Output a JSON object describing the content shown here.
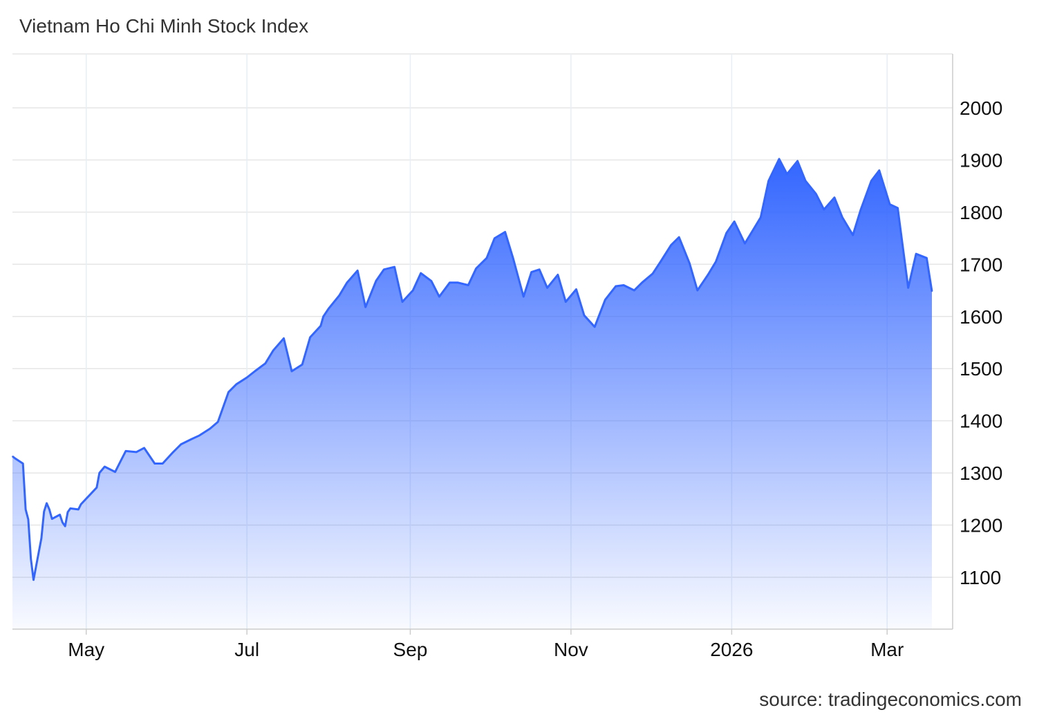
{
  "chart_data": {
    "type": "area",
    "title": "Vietnam Ho Chi Minh Stock Index",
    "source": "source: tradingeconomics.com",
    "xlabel": "",
    "ylabel": "",
    "x_ticks": [
      "May",
      "Jul",
      "Sep",
      "Nov",
      "2026",
      "Mar"
    ],
    "y_ticks": [
      1100,
      1200,
      1300,
      1400,
      1500,
      1600,
      1700,
      1800,
      1900,
      2000
    ],
    "ylim": [
      1000,
      2100
    ],
    "grid": true,
    "y_axis_side": "right",
    "series": [
      {
        "color": "#3366ff",
        "x": [
          "2025-04-03",
          "2025-04-04",
          "2025-04-07",
          "2025-04-08",
          "2025-04-09",
          "2025-04-10",
          "2025-04-11",
          "2025-04-14",
          "2025-04-15",
          "2025-04-16",
          "2025-04-17",
          "2025-04-18",
          "2025-04-21",
          "2025-04-22",
          "2025-04-23",
          "2025-04-24",
          "2025-04-25",
          "2025-04-28",
          "2025-04-29",
          "2025-05-05",
          "2025-05-06",
          "2025-05-08",
          "2025-05-12",
          "2025-05-14",
          "2025-05-16",
          "2025-05-20",
          "2025-05-23",
          "2025-05-27",
          "2025-05-30",
          "2025-06-03",
          "2025-06-06",
          "2025-06-10",
          "2025-06-13",
          "2025-06-17",
          "2025-06-20",
          "2025-06-24",
          "2025-06-27",
          "2025-07-01",
          "2025-07-04",
          "2025-07-08",
          "2025-07-11",
          "2025-07-15",
          "2025-07-18",
          "2025-07-22",
          "2025-07-25",
          "2025-07-29",
          "2025-07-30",
          "2025-08-01",
          "2025-08-05",
          "2025-08-08",
          "2025-08-12",
          "2025-08-15",
          "2025-08-19",
          "2025-08-22",
          "2025-08-26",
          "2025-08-29",
          "2025-09-02",
          "2025-09-05",
          "2025-09-09",
          "2025-09-12",
          "2025-09-16",
          "2025-09-19",
          "2025-09-23",
          "2025-09-26",
          "2025-09-30",
          "2025-10-03",
          "2025-10-07",
          "2025-10-10",
          "2025-10-14",
          "2025-10-17",
          "2025-10-20",
          "2025-10-23",
          "2025-10-27",
          "2025-10-30",
          "2025-11-03",
          "2025-11-06",
          "2025-11-10",
          "2025-11-14",
          "2025-11-18",
          "2025-11-21",
          "2025-11-25",
          "2025-11-28",
          "2025-12-02",
          "2025-12-05",
          "2025-12-09",
          "2025-12-12",
          "2025-12-16",
          "2025-12-19",
          "2025-12-23",
          "2025-12-26",
          "2025-12-30",
          "2026-01-02",
          "2026-01-06",
          "2026-01-09",
          "2026-01-12",
          "2026-01-15",
          "2026-01-19",
          "2026-01-22",
          "2026-01-26",
          "2026-01-29",
          "2026-02-02",
          "2026-02-05",
          "2026-02-09",
          "2026-02-12",
          "2026-02-16",
          "2026-02-19",
          "2026-02-23",
          "2026-02-26",
          "2026-03-02",
          "2026-03-05",
          "2026-03-09",
          "2026-03-12",
          "2026-03-16",
          "2026-03-18"
        ],
        "values": [
          1332,
          1328,
          1318,
          1230,
          1211,
          1135,
          1095,
          1175,
          1226,
          1242,
          1230,
          1212,
          1220,
          1205,
          1198,
          1225,
          1232,
          1230,
          1240,
          1272,
          1300,
          1312,
          1302,
          1322,
          1342,
          1340,
          1348,
          1318,
          1318,
          1340,
          1355,
          1365,
          1372,
          1385,
          1398,
          1455,
          1470,
          1483,
          1495,
          1510,
          1535,
          1558,
          1495,
          1508,
          1560,
          1582,
          1600,
          1615,
          1640,
          1665,
          1688,
          1618,
          1668,
          1690,
          1695,
          1628,
          1650,
          1683,
          1668,
          1638,
          1665,
          1665,
          1660,
          1692,
          1712,
          1750,
          1762,
          1712,
          1638,
          1685,
          1690,
          1655,
          1680,
          1628,
          1652,
          1602,
          1580,
          1632,
          1658,
          1660,
          1650,
          1665,
          1682,
          1705,
          1737,
          1752,
          1702,
          1650,
          1680,
          1705,
          1760,
          1782,
          1740,
          1765,
          1790,
          1860,
          1902,
          1873,
          1898,
          1860,
          1835,
          1805,
          1828,
          1790,
          1756,
          1805,
          1860,
          1880,
          1815,
          1808,
          1655,
          1720,
          1712,
          1648
        ],
        "anchor_values_note_removed": true
      }
    ]
  }
}
